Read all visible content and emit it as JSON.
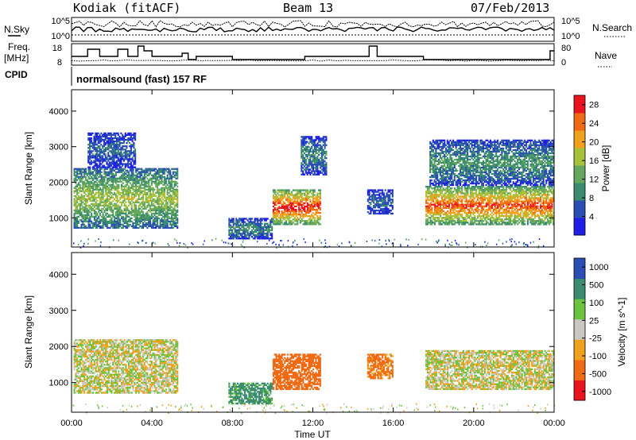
{
  "header": {
    "station": "Kodiak (fitACF)",
    "beam": "Beam 13",
    "date": "07/Feb/2013"
  },
  "side_labels": {
    "nsky": "N.Sky",
    "nsearch": "N.Search",
    "freq_line1": "Freq.",
    "freq_line2": "[MHz]",
    "nave": "Nave",
    "cpid": "CPID"
  },
  "cpid_text": "normalsound (fast) 157 RF",
  "noise_panel": {
    "left_ticks": [
      "10^5",
      "10^0"
    ],
    "right_ticks": [
      "10^5",
      "10^0"
    ]
  },
  "freq_panel": {
    "left_ticks": [
      "18",
      "8"
    ],
    "right_ticks": [
      "80",
      "0"
    ]
  },
  "colors": {
    "power": [
      "#1e1ee6",
      "#2a4fb4",
      "#3b8c6e",
      "#63a85c",
      "#a7c13a",
      "#f0a21e",
      "#f06a14",
      "#e8141e"
    ],
    "velocity": [
      "#e8141e",
      "#f06a14",
      "#f0a21e",
      "#c8c8c0",
      "#6bc43e",
      "#3b8c6e",
      "#2a4fb4"
    ]
  },
  "chart_data": [
    {
      "type": "heatmap",
      "title": "Power",
      "ylabel": "Slant Range [km]",
      "xlabel": "Time UT",
      "x_ticks": [
        "00:00",
        "04:00",
        "08:00",
        "12:00",
        "16:00",
        "20:00",
        "00:00"
      ],
      "xlim_hours": [
        0,
        24
      ],
      "y_ticks": [
        1000,
        2000,
        3000,
        4000
      ],
      "ylim_km": [
        180,
        4600
      ],
      "colorbar": {
        "label": "Power [dB]",
        "ticks": [
          4,
          8,
          12,
          16,
          20,
          24,
          28
        ],
        "range": [
          0,
          30
        ]
      },
      "echo_regions": [
        {
          "t0": 0.1,
          "t1": 5.3,
          "r0": 700,
          "r1": 2400,
          "level": 14
        },
        {
          "t0": 0.8,
          "t1": 3.2,
          "r0": 2400,
          "r1": 3400,
          "level": 6
        },
        {
          "t0": 7.8,
          "t1": 10.0,
          "r0": 400,
          "r1": 1000,
          "level": 8
        },
        {
          "t0": 10.0,
          "t1": 12.4,
          "r0": 800,
          "r1": 1800,
          "level": 24
        },
        {
          "t0": 11.4,
          "t1": 12.7,
          "r0": 2200,
          "r1": 3300,
          "level": 8
        },
        {
          "t0": 14.7,
          "t1": 16.0,
          "r0": 1100,
          "r1": 1800,
          "level": 6
        },
        {
          "t0": 17.6,
          "t1": 24.0,
          "r0": 800,
          "r1": 1900,
          "level": 22
        },
        {
          "t0": 17.8,
          "t1": 24.0,
          "r0": 1900,
          "r1": 3200,
          "level": 9
        }
      ]
    },
    {
      "type": "heatmap",
      "title": "Velocity",
      "ylabel": "Slant Range [km]",
      "xlabel": "Time UT",
      "x_ticks": [
        "00:00",
        "04:00",
        "08:00",
        "12:00",
        "16:00",
        "20:00",
        "00:00"
      ],
      "xlim_hours": [
        0,
        24
      ],
      "y_ticks": [
        1000,
        2000,
        3000,
        4000
      ],
      "ylim_km": [
        180,
        4600
      ],
      "colorbar": {
        "label": "Velocity [m s^-1]",
        "ticks": [
          "1000",
          "500",
          "100",
          "25",
          "-25",
          "-100",
          "-500",
          "-1000"
        ]
      },
      "echo_regions": [
        {
          "t0": 0.1,
          "t1": 5.3,
          "r0": 700,
          "r1": 2200,
          "level": 0
        },
        {
          "t0": 7.8,
          "t1": 10.0,
          "r0": 400,
          "r1": 1000,
          "level": 150
        },
        {
          "t0": 10.0,
          "t1": 12.4,
          "r0": 800,
          "r1": 1800,
          "level": -300
        },
        {
          "t0": 14.7,
          "t1": 16.0,
          "r0": 1100,
          "r1": 1800,
          "level": -150
        },
        {
          "t0": 17.6,
          "t1": 24.0,
          "r0": 800,
          "r1": 1900,
          "level": 0
        }
      ]
    }
  ]
}
